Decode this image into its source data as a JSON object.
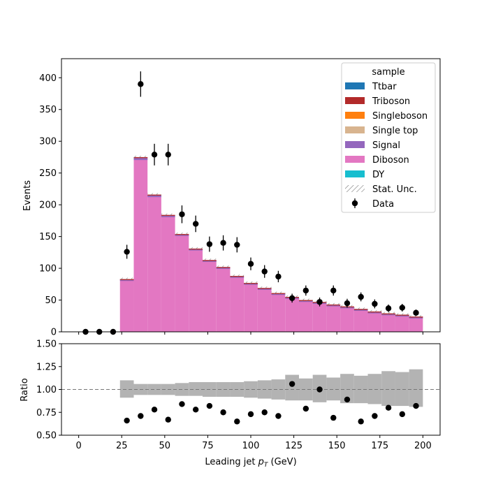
{
  "chart_data": {
    "type": "bar",
    "main_panel": {
      "ylabel": "Events",
      "ylim": [
        0,
        430
      ],
      "yticks": [
        0,
        50,
        100,
        150,
        200,
        250,
        300,
        350,
        400
      ],
      "bins": [
        {
          "lo": 24,
          "hi": 32,
          "mc": 83
        },
        {
          "lo": 32,
          "hi": 40,
          "mc": 275
        },
        {
          "lo": 40,
          "hi": 48,
          "mc": 216
        },
        {
          "lo": 48,
          "hi": 56,
          "mc": 184
        },
        {
          "lo": 56,
          "hi": 64,
          "mc": 154
        },
        {
          "lo": 64,
          "hi": 72,
          "mc": 131
        },
        {
          "lo": 72,
          "hi": 80,
          "mc": 113
        },
        {
          "lo": 80,
          "hi": 88,
          "mc": 102
        },
        {
          "lo": 88,
          "hi": 96,
          "mc": 88
        },
        {
          "lo": 96,
          "hi": 104,
          "mc": 77
        },
        {
          "lo": 104,
          "hi": 112,
          "mc": 69
        },
        {
          "lo": 112,
          "hi": 120,
          "mc": 61
        },
        {
          "lo": 120,
          "hi": 128,
          "mc": 55
        },
        {
          "lo": 128,
          "hi": 136,
          "mc": 50
        },
        {
          "lo": 136,
          "hi": 144,
          "mc": 47
        },
        {
          "lo": 144,
          "hi": 152,
          "mc": 43
        },
        {
          "lo": 152,
          "hi": 160,
          "mc": 40
        },
        {
          "lo": 160,
          "hi": 168,
          "mc": 36
        },
        {
          "lo": 168,
          "hi": 176,
          "mc": 32
        },
        {
          "lo": 176,
          "hi": 184,
          "mc": 29
        },
        {
          "lo": 184,
          "hi": 192,
          "mc": 27
        },
        {
          "lo": 192,
          "hi": 200,
          "mc": 24
        }
      ],
      "data_points": [
        {
          "x": 4,
          "y": 0,
          "err": 0
        },
        {
          "x": 12,
          "y": 0,
          "err": 0
        },
        {
          "x": 20,
          "y": 0,
          "err": 0
        },
        {
          "x": 28,
          "y": 126,
          "err": 11
        },
        {
          "x": 36,
          "y": 390,
          "err": 20
        },
        {
          "x": 44,
          "y": 279,
          "err": 17
        },
        {
          "x": 52,
          "y": 279,
          "err": 17
        },
        {
          "x": 60,
          "y": 185,
          "err": 14
        },
        {
          "x": 68,
          "y": 170,
          "err": 13
        },
        {
          "x": 76,
          "y": 138,
          "err": 12
        },
        {
          "x": 84,
          "y": 140,
          "err": 12
        },
        {
          "x": 92,
          "y": 137,
          "err": 12
        },
        {
          "x": 100,
          "y": 107,
          "err": 10
        },
        {
          "x": 108,
          "y": 95,
          "err": 10
        },
        {
          "x": 116,
          "y": 87,
          "err": 9
        },
        {
          "x": 124,
          "y": 53,
          "err": 7
        },
        {
          "x": 132,
          "y": 65,
          "err": 8
        },
        {
          "x": 140,
          "y": 47,
          "err": 7
        },
        {
          "x": 148,
          "y": 65,
          "err": 8
        },
        {
          "x": 156,
          "y": 45,
          "err": 7
        },
        {
          "x": 164,
          "y": 55,
          "err": 7
        },
        {
          "x": 172,
          "y": 44,
          "err": 7
        },
        {
          "x": 180,
          "y": 37,
          "err": 6
        },
        {
          "x": 188,
          "y": 38,
          "err": 6
        },
        {
          "x": 196,
          "y": 30,
          "err": 5
        }
      ]
    },
    "ratio_panel": {
      "ylabel": "Ratio",
      "ylim": [
        0.5,
        1.5
      ],
      "yticks": [
        "0.50",
        "0.75",
        "1.00",
        "1.25",
        "1.50"
      ],
      "ytick_values": [
        0.5,
        0.75,
        1.0,
        1.25,
        1.5
      ],
      "reference_line": 1.0,
      "unc_band": [
        {
          "lo": 24,
          "hi": 32,
          "down": 0.91,
          "up": 1.1
        },
        {
          "lo": 32,
          "hi": 40,
          "down": 0.94,
          "up": 1.06
        },
        {
          "lo": 40,
          "hi": 48,
          "down": 0.94,
          "up": 1.06
        },
        {
          "lo": 48,
          "hi": 56,
          "down": 0.94,
          "up": 1.06
        },
        {
          "lo": 56,
          "hi": 64,
          "down": 0.93,
          "up": 1.07
        },
        {
          "lo": 64,
          "hi": 72,
          "down": 0.93,
          "up": 1.08
        },
        {
          "lo": 72,
          "hi": 80,
          "down": 0.92,
          "up": 1.08
        },
        {
          "lo": 80,
          "hi": 88,
          "down": 0.92,
          "up": 1.08
        },
        {
          "lo": 88,
          "hi": 96,
          "down": 0.92,
          "up": 1.08
        },
        {
          "lo": 96,
          "hi": 104,
          "down": 0.91,
          "up": 1.09
        },
        {
          "lo": 104,
          "hi": 112,
          "down": 0.9,
          "up": 1.1
        },
        {
          "lo": 112,
          "hi": 120,
          "down": 0.89,
          "up": 1.11
        },
        {
          "lo": 120,
          "hi": 128,
          "down": 0.88,
          "up": 1.16
        },
        {
          "lo": 128,
          "hi": 136,
          "down": 0.88,
          "up": 1.12
        },
        {
          "lo": 136,
          "hi": 144,
          "down": 0.86,
          "up": 1.16
        },
        {
          "lo": 144,
          "hi": 152,
          "down": 0.88,
          "up": 1.13
        },
        {
          "lo": 152,
          "hi": 160,
          "down": 0.85,
          "up": 1.17
        },
        {
          "lo": 160,
          "hi": 168,
          "down": 0.85,
          "up": 1.15
        },
        {
          "lo": 168,
          "hi": 176,
          "down": 0.84,
          "up": 1.17
        },
        {
          "lo": 176,
          "hi": 184,
          "down": 0.82,
          "up": 1.2
        },
        {
          "lo": 184,
          "hi": 192,
          "down": 0.82,
          "up": 1.19
        },
        {
          "lo": 192,
          "hi": 200,
          "down": 0.81,
          "up": 1.22
        }
      ],
      "points": [
        {
          "x": 28,
          "y": 0.66
        },
        {
          "x": 36,
          "y": 0.71
        },
        {
          "x": 44,
          "y": 0.78
        },
        {
          "x": 52,
          "y": 0.67
        },
        {
          "x": 60,
          "y": 0.84
        },
        {
          "x": 68,
          "y": 0.78
        },
        {
          "x": 76,
          "y": 0.82
        },
        {
          "x": 84,
          "y": 0.75
        },
        {
          "x": 92,
          "y": 0.65
        },
        {
          "x": 100,
          "y": 0.73
        },
        {
          "x": 108,
          "y": 0.75
        },
        {
          "x": 116,
          "y": 0.71
        },
        {
          "x": 124,
          "y": 1.06
        },
        {
          "x": 132,
          "y": 0.79
        },
        {
          "x": 140,
          "y": 1.0
        },
        {
          "x": 148,
          "y": 0.69
        },
        {
          "x": 156,
          "y": 0.89
        },
        {
          "x": 164,
          "y": 0.65
        },
        {
          "x": 172,
          "y": 0.71
        },
        {
          "x": 180,
          "y": 0.8
        },
        {
          "x": 188,
          "y": 0.73
        },
        {
          "x": 196,
          "y": 0.82
        }
      ]
    },
    "xlabel_prefix": "Leading jet  ",
    "xlabel_symbol": "p",
    "xlabel_subscript": "T",
    "xlabel_suffix": " (GeV)",
    "xlim": [
      -10,
      210
    ],
    "xticks": [
      0,
      25,
      50,
      75,
      100,
      125,
      150,
      175,
      200
    ],
    "legend": {
      "title": "sample",
      "placement": "top-right",
      "entries": [
        {
          "label": "Ttbar",
          "color": "#1f77b4",
          "kind": "patch"
        },
        {
          "label": "Triboson",
          "color": "#b22a2a",
          "kind": "patch"
        },
        {
          "label": "Singleboson",
          "color": "#ff7f0e",
          "kind": "patch"
        },
        {
          "label": "Single top",
          "color": "#d8b48f",
          "kind": "patch"
        },
        {
          "label": "Signal",
          "color": "#9467bd",
          "kind": "patch"
        },
        {
          "label": "Diboson",
          "color": "#e377c2",
          "kind": "patch"
        },
        {
          "label": "DY",
          "color": "#17becf",
          "kind": "patch"
        },
        {
          "label": "Stat. Unc.",
          "color": "#888888",
          "kind": "hatch"
        },
        {
          "label": "Data",
          "color": "#000000",
          "kind": "errorbar"
        }
      ]
    },
    "colors": {
      "diboson": "#e377c2",
      "signal": "#9467bd",
      "triboson": "#b22a2a",
      "single_top": "#d8b48f",
      "band": "#b3b3b3"
    }
  }
}
